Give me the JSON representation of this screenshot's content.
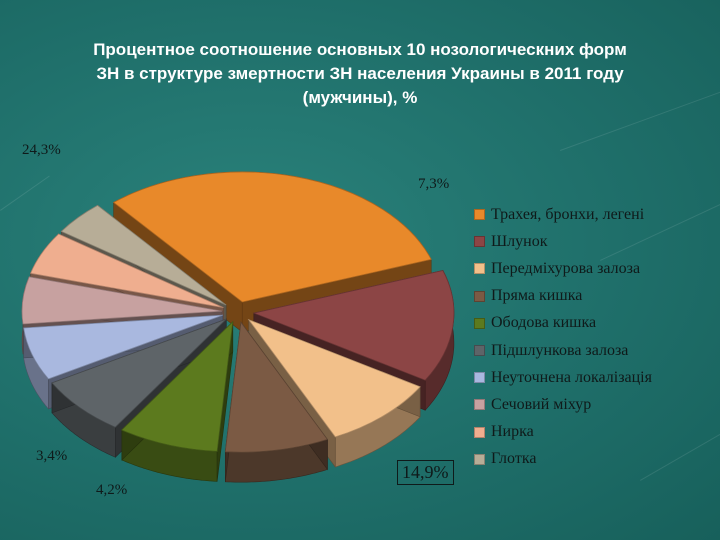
{
  "title_lines": [
    "Процентное соотношение основных 10 нозологическних форм",
    "ЗН в структуре змертности ЗН населения Украины в 2011 году",
    "(мужчины), %"
  ],
  "chart_data": {
    "type": "pie",
    "title": "Процентное соотношение основных 10 нозологическних форм ЗН в структуре змертности ЗН населения Украины в 2011 году (мужчины), %",
    "style": "3d-exploded",
    "legend_position": "right",
    "categories": [
      "Трахея, бронхи, легені",
      "Шлунок",
      "Передміхурова залоза",
      "Пряма кишка",
      "Ободова кишка",
      "Підшлункова залоза",
      "Неуточнена локалізація",
      "Сечовий міхур",
      "Нирка",
      "Глотка"
    ],
    "values": [
      24.3,
      11.0,
      7.3,
      6.6,
      6.4,
      5.9,
      5.2,
      4.6,
      4.2,
      3.4
    ],
    "printed_labels": [
      "24,3%",
      "7,3%",
      "14,9%",
      "4,2%",
      "3,4%"
    ],
    "colors": [
      "#e8892a",
      "#8c4545",
      "#f2c08a",
      "#7b5a44",
      "#5c7a1e",
      "#5e6468",
      "#a9b8df",
      "#c7a1a0",
      "#efae8f",
      "#b7ad97"
    ]
  }
}
